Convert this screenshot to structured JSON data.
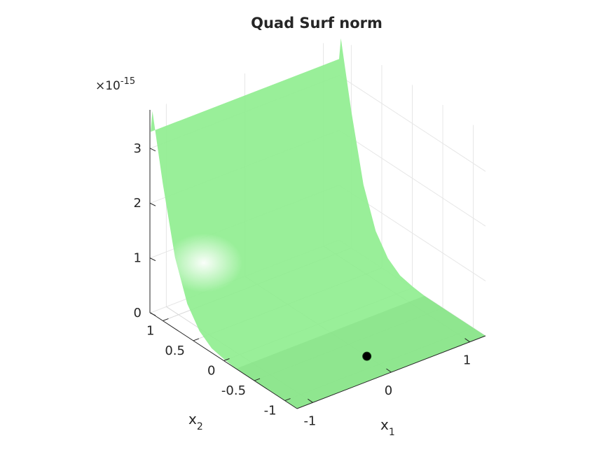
{
  "chart_data": {
    "type": "surface",
    "title": "Quad Surf norm",
    "xlabel": "x",
    "xlabel_sub": "1",
    "ylabel": "x",
    "ylabel_sub": "2",
    "zlabel": "",
    "z_exponent_prefix": "×10",
    "z_exponent": "-15",
    "xlim": [
      -1.2,
      1.2
    ],
    "ylim": [
      -1.2,
      1.2
    ],
    "zlim": [
      0,
      3.7
    ],
    "x_ticks": [
      {
        "value": -1,
        "label": "-1"
      },
      {
        "value": 0,
        "label": "0"
      },
      {
        "value": 1,
        "label": "1"
      }
    ],
    "y_ticks": [
      {
        "value": -1,
        "label": "-1"
      },
      {
        "value": -0.5,
        "label": "-0.5"
      },
      {
        "value": 0,
        "label": "0"
      },
      {
        "value": 0.5,
        "label": "0.5"
      },
      {
        "value": 1,
        "label": "1"
      }
    ],
    "z_ticks": [
      {
        "value": 0,
        "label": "0"
      },
      {
        "value": 1,
        "label": "1"
      },
      {
        "value": 2,
        "label": "2"
      },
      {
        "value": 3,
        "label": "3"
      }
    ],
    "grid": true,
    "surface_color": "#90ee90",
    "marker": {
      "x": 0.0,
      "y": -0.8,
      "z": 0,
      "color": "#000000"
    },
    "surface_profile_along_x2": [
      {
        "x2": -1.2,
        "z": 0.0
      },
      {
        "x2": -0.2,
        "z": 0.0
      },
      {
        "x2": 0.0,
        "z": 0.03
      },
      {
        "x2": 0.2,
        "z": 0.08
      },
      {
        "x2": 0.4,
        "z": 0.25
      },
      {
        "x2": 0.6,
        "z": 0.6
      },
      {
        "x2": 0.8,
        "z": 1.3
      },
      {
        "x2": 1.0,
        "z": 2.5
      },
      {
        "x2": 1.1,
        "z": 3.2
      },
      {
        "x2": 1.17,
        "z": 3.7
      },
      {
        "x2": 1.2,
        "z": 3.3
      }
    ]
  }
}
